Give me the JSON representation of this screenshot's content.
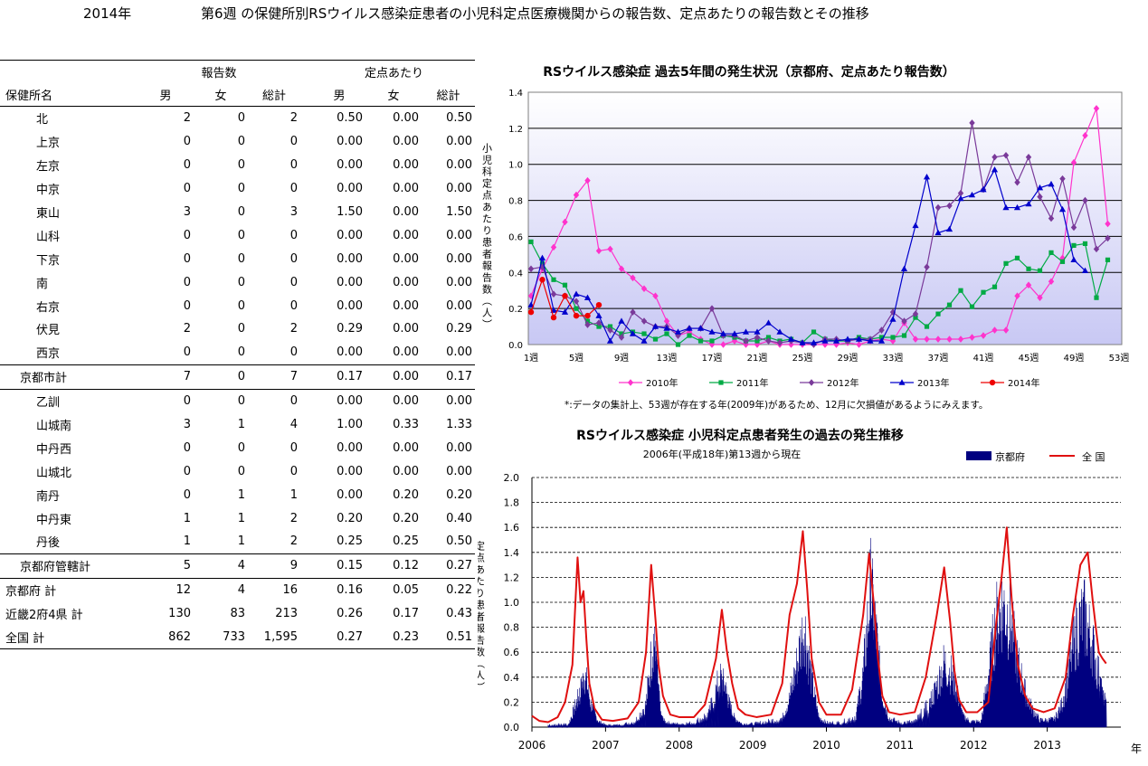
{
  "header": {
    "year": "2014年",
    "title": "第6週 の保健所別RSウイルス感染症患者の小児科定点医療機関からの報告数、定点あたりの報告数とその推移"
  },
  "table": {
    "group_reports": "報告数",
    "group_per": "定点あたり",
    "col_name": "保健所名",
    "col_labels": [
      "男",
      "女",
      "総計",
      "男",
      "女",
      "総計"
    ],
    "rows": [
      {
        "name": "北",
        "vals": [
          "2",
          "0",
          "2",
          "0.50",
          "0.00",
          "0.50"
        ],
        "kind": "sub"
      },
      {
        "name": "上京",
        "vals": [
          "0",
          "0",
          "0",
          "0.00",
          "0.00",
          "0.00"
        ],
        "kind": "sub"
      },
      {
        "name": "左京",
        "vals": [
          "0",
          "0",
          "0",
          "0.00",
          "0.00",
          "0.00"
        ],
        "kind": "sub"
      },
      {
        "name": "中京",
        "vals": [
          "0",
          "0",
          "0",
          "0.00",
          "0.00",
          "0.00"
        ],
        "kind": "sub"
      },
      {
        "name": "東山",
        "vals": [
          "3",
          "0",
          "3",
          "1.50",
          "0.00",
          "1.50"
        ],
        "kind": "sub"
      },
      {
        "name": "山科",
        "vals": [
          "0",
          "0",
          "0",
          "0.00",
          "0.00",
          "0.00"
        ],
        "kind": "sub"
      },
      {
        "name": "下京",
        "vals": [
          "0",
          "0",
          "0",
          "0.00",
          "0.00",
          "0.00"
        ],
        "kind": "sub"
      },
      {
        "name": "南",
        "vals": [
          "0",
          "0",
          "0",
          "0.00",
          "0.00",
          "0.00"
        ],
        "kind": "sub"
      },
      {
        "name": "右京",
        "vals": [
          "0",
          "0",
          "0",
          "0.00",
          "0.00",
          "0.00"
        ],
        "kind": "sub"
      },
      {
        "name": "伏見",
        "vals": [
          "2",
          "0",
          "2",
          "0.29",
          "0.00",
          "0.29"
        ],
        "kind": "sub"
      },
      {
        "name": "西京",
        "vals": [
          "0",
          "0",
          "0",
          "0.00",
          "0.00",
          "0.00"
        ],
        "kind": "sub"
      },
      {
        "name": "京都市計",
        "vals": [
          "7",
          "0",
          "7",
          "0.17",
          "0.00",
          "0.17"
        ],
        "kind": "sum"
      },
      {
        "name": "乙訓",
        "vals": [
          "0",
          "0",
          "0",
          "0.00",
          "0.00",
          "0.00"
        ],
        "kind": "sub"
      },
      {
        "name": "山城南",
        "vals": [
          "3",
          "1",
          "4",
          "1.00",
          "0.33",
          "1.33"
        ],
        "kind": "sub"
      },
      {
        "name": "中丹西",
        "vals": [
          "0",
          "0",
          "0",
          "0.00",
          "0.00",
          "0.00"
        ],
        "kind": "sub"
      },
      {
        "name": "山城北",
        "vals": [
          "0",
          "0",
          "0",
          "0.00",
          "0.00",
          "0.00"
        ],
        "kind": "sub"
      },
      {
        "name": "南丹",
        "vals": [
          "0",
          "1",
          "1",
          "0.00",
          "0.20",
          "0.20"
        ],
        "kind": "sub"
      },
      {
        "name": "中丹東",
        "vals": [
          "1",
          "1",
          "2",
          "0.20",
          "0.20",
          "0.40"
        ],
        "kind": "sub"
      },
      {
        "name": "丹後",
        "vals": [
          "1",
          "1",
          "2",
          "0.25",
          "0.25",
          "0.50"
        ],
        "kind": "sub"
      },
      {
        "name": "京都府管轄計",
        "vals": [
          "5",
          "4",
          "9",
          "0.15",
          "0.12",
          "0.27"
        ],
        "kind": "sum"
      },
      {
        "name": "京都府 計",
        "vals": [
          "12",
          "4",
          "16",
          "0.16",
          "0.05",
          "0.22"
        ],
        "kind": "top"
      },
      {
        "name": "近畿2府4県 計",
        "vals": [
          "130",
          "83",
          "213",
          "0.26",
          "0.17",
          "0.43"
        ],
        "kind": "top"
      },
      {
        "name": "全国 計",
        "vals": [
          "862",
          "733",
          "1,595",
          "0.27",
          "0.23",
          "0.51"
        ],
        "kind": "top"
      }
    ]
  },
  "chart_data": [
    {
      "type": "line",
      "title": "RSウイルス感染症 過去5年間の発生状況（京都府、定点あたり報告数）",
      "ylabel": "小児科定点あたり患者報告数（人）",
      "ylim": [
        0,
        1.4
      ],
      "yticks": [
        "0.0",
        "0.2",
        "0.4",
        "0.6",
        "0.8",
        "1.0",
        "1.2",
        "1.4"
      ],
      "xticks": [
        "1週",
        "5週",
        "9週",
        "13週",
        "17週",
        "21週",
        "25週",
        "29週",
        "33週",
        "37週",
        "41週",
        "45週",
        "49週",
        "53週"
      ],
      "xlim": [
        1,
        53
      ],
      "grid": true,
      "legend_position": "bottom",
      "note": "*:データの集計上、53週が存在する年(2009年)があるため、12月に欠損値があるようにみえます。",
      "series": [
        {
          "name": "2010年",
          "color": "#ff33cc",
          "marker": "diamond",
          "values": [
            0.27,
            0.42,
            0.54,
            0.68,
            0.83,
            0.91,
            0.52,
            0.53,
            0.42,
            0.37,
            0.31,
            0.27,
            0.13,
            0.05,
            0.07,
            0.03,
            0.0,
            0.0,
            0.02,
            0.0,
            0.0,
            0.02,
            0.0,
            0.0,
            0.0,
            0.0,
            0.0,
            0.0,
            0.01,
            0.0,
            0.02,
            0.03,
            0.02,
            0.12,
            0.03,
            0.03,
            0.03,
            0.03,
            0.03,
            0.04,
            0.05,
            0.08,
            0.08,
            0.27,
            0.33,
            0.26,
            0.35,
            0.48,
            1.01,
            1.16,
            1.31,
            0.67
          ]
        },
        {
          "name": "2011年",
          "color": "#00aa44",
          "marker": "square",
          "values": [
            0.57,
            0.45,
            0.36,
            0.33,
            0.2,
            0.13,
            0.1,
            0.1,
            0.06,
            0.07,
            0.06,
            0.03,
            0.06,
            0.0,
            0.05,
            0.02,
            0.02,
            0.05,
            0.04,
            0.02,
            0.02,
            0.04,
            0.02,
            0.03,
            0.01,
            0.07,
            0.03,
            0.02,
            0.02,
            0.04,
            0.03,
            0.04,
            0.04,
            0.05,
            0.15,
            0.1,
            0.17,
            0.22,
            0.3,
            0.21,
            0.29,
            0.32,
            0.45,
            0.48,
            0.42,
            0.41,
            0.51,
            0.46,
            0.55,
            0.56,
            0.26,
            0.47
          ]
        },
        {
          "name": "2012年",
          "color": "#7a3a9a",
          "marker": "diamond",
          "values": [
            0.42,
            0.43,
            0.28,
            0.27,
            0.24,
            0.11,
            0.12,
            0.08,
            0.04,
            0.18,
            0.13,
            0.1,
            0.1,
            0.05,
            0.09,
            0.09,
            0.2,
            0.05,
            0.05,
            0.02,
            0.04,
            0.02,
            0.01,
            0.02,
            0.01,
            0.0,
            0.03,
            0.03,
            0.02,
            0.03,
            0.03,
            0.08,
            0.18,
            0.13,
            0.17,
            0.43,
            0.76,
            0.77,
            0.84,
            1.23,
            0.86,
            1.04,
            1.05,
            0.9,
            1.04,
            0.82,
            0.7,
            0.92,
            0.65,
            0.8,
            0.53,
            0.59
          ]
        },
        {
          "name": "2013年",
          "color": "#0000cc",
          "marker": "triangle",
          "values": [
            0.22,
            0.48,
            0.19,
            0.18,
            0.28,
            0.26,
            0.16,
            0.02,
            0.13,
            0.06,
            0.02,
            0.1,
            0.09,
            0.07,
            0.09,
            0.09,
            0.07,
            0.06,
            0.06,
            0.07,
            0.07,
            0.12,
            0.07,
            0.03,
            0.01,
            0.01,
            0.02,
            0.02,
            0.03,
            0.03,
            0.02,
            0.02,
            0.14,
            0.42,
            0.66,
            0.93,
            0.62,
            0.64,
            0.81,
            0.83,
            0.86,
            0.97,
            0.76,
            0.76,
            0.78,
            0.87,
            0.89,
            0.75,
            0.47,
            0.41
          ]
        },
        {
          "name": "2014年",
          "color": "#ee0000",
          "marker": "circle",
          "values": [
            0.18,
            0.36,
            0.15,
            0.27,
            0.16,
            0.16,
            0.22
          ]
        }
      ]
    },
    {
      "type": "area",
      "title": "RSウイルス感染症 小児科定点患者発生の過去の発生推移",
      "subtitle": "2006年(平成18年)第13週から現在",
      "ylabel": "定点あたり患者報告数（人）",
      "xunit": "年",
      "ylim": [
        0,
        2.0
      ],
      "yticks": [
        "0.0",
        "0.2",
        "0.4",
        "0.6",
        "0.8",
        "1.0",
        "1.2",
        "1.4",
        "1.6",
        "1.8",
        "2.0"
      ],
      "xlim": [
        2006,
        2014
      ],
      "xticks": [
        "2006",
        "2007",
        "2008",
        "2009",
        "2010",
        "2011",
        "2012",
        "2013"
      ],
      "grid": true,
      "legend_position": "top-right",
      "series": [
        {
          "name": "京都府",
          "type": "area",
          "color": "#000080",
          "x": [
            2006.22,
            2006.5,
            2006.6,
            2006.66,
            2006.72,
            2006.8,
            2006.9,
            2007.0,
            2007.2,
            2007.4,
            2007.55,
            2007.65,
            2007.7,
            2007.75,
            2007.8,
            2007.9,
            2008.0,
            2008.2,
            2008.4,
            2008.55,
            2008.62,
            2008.68,
            2008.75,
            2008.85,
            2009.0,
            2009.2,
            2009.4,
            2009.5,
            2009.6,
            2009.7,
            2009.8,
            2009.9,
            2010.0,
            2010.2,
            2010.4,
            2010.5,
            2010.6,
            2010.68,
            2010.75,
            2010.85,
            2011.0,
            2011.2,
            2011.4,
            2011.5,
            2011.6,
            2011.7,
            2011.78,
            2011.85,
            2011.95,
            2012.1,
            2012.2,
            2012.3,
            2012.4,
            2012.5,
            2012.6,
            2012.7,
            2012.8,
            2012.9,
            2013.0,
            2013.1,
            2013.2,
            2013.3,
            2013.4,
            2013.5,
            2013.6,
            2013.7,
            2013.75,
            2013.8
          ],
          "values": [
            0.02,
            0.03,
            0.2,
            0.3,
            0.45,
            0.2,
            0.05,
            0.02,
            0.02,
            0.05,
            0.2,
            0.77,
            0.45,
            0.1,
            0.05,
            0.03,
            0.03,
            0.04,
            0.12,
            0.42,
            0.35,
            0.2,
            0.08,
            0.03,
            0.03,
            0.05,
            0.08,
            0.25,
            0.55,
            0.88,
            0.4,
            0.08,
            0.04,
            0.04,
            0.1,
            0.45,
            1.2,
            0.78,
            0.3,
            0.08,
            0.04,
            0.05,
            0.2,
            0.35,
            0.55,
            0.45,
            0.28,
            0.1,
            0.05,
            0.05,
            0.45,
            0.9,
            1.06,
            0.9,
            0.55,
            0.3,
            0.15,
            0.06,
            0.06,
            0.07,
            0.2,
            0.5,
            0.85,
            0.95,
            0.75,
            0.45,
            0.25,
            0.22
          ]
        },
        {
          "name": "全 国",
          "type": "line",
          "color": "#e01010",
          "x": [
            2006.0,
            2006.1,
            2006.22,
            2006.35,
            2006.45,
            2006.55,
            2006.62,
            2006.66,
            2006.7,
            2006.74,
            2006.78,
            2006.85,
            2006.95,
            2007.1,
            2007.3,
            2007.45,
            2007.55,
            2007.62,
            2007.68,
            2007.72,
            2007.78,
            2007.88,
            2008.0,
            2008.2,
            2008.35,
            2008.5,
            2008.58,
            2008.65,
            2008.72,
            2008.8,
            2008.9,
            2009.05,
            2009.25,
            2009.4,
            2009.5,
            2009.6,
            2009.68,
            2009.74,
            2009.8,
            2009.9,
            2010.0,
            2010.2,
            2010.35,
            2010.5,
            2010.58,
            2010.65,
            2010.7,
            2010.76,
            2010.85,
            2011.0,
            2011.2,
            2011.35,
            2011.5,
            2011.6,
            2011.68,
            2011.74,
            2011.8,
            2011.9,
            2012.05,
            2012.2,
            2012.3,
            2012.38,
            2012.45,
            2012.52,
            2012.6,
            2012.7,
            2012.8,
            2012.95,
            2013.1,
            2013.25,
            2013.35,
            2013.45,
            2013.55,
            2013.62,
            2013.7,
            2013.75,
            2013.8
          ],
          "values": [
            0.09,
            0.05,
            0.04,
            0.08,
            0.2,
            0.5,
            1.36,
            1.0,
            1.09,
            0.7,
            0.35,
            0.15,
            0.06,
            0.05,
            0.07,
            0.2,
            0.6,
            1.3,
            0.85,
            0.5,
            0.25,
            0.1,
            0.08,
            0.08,
            0.18,
            0.55,
            0.94,
            0.6,
            0.35,
            0.15,
            0.1,
            0.08,
            0.1,
            0.35,
            0.9,
            1.15,
            1.57,
            1.1,
            0.55,
            0.2,
            0.1,
            0.1,
            0.3,
            0.9,
            1.39,
            0.95,
            0.55,
            0.25,
            0.12,
            0.1,
            0.12,
            0.4,
            0.9,
            1.28,
            0.85,
            0.45,
            0.22,
            0.12,
            0.12,
            0.2,
            0.8,
            1.2,
            1.6,
            1.0,
            0.5,
            0.25,
            0.15,
            0.12,
            0.15,
            0.4,
            0.9,
            1.3,
            1.4,
            1.0,
            0.6,
            0.55,
            0.51
          ]
        }
      ]
    }
  ]
}
